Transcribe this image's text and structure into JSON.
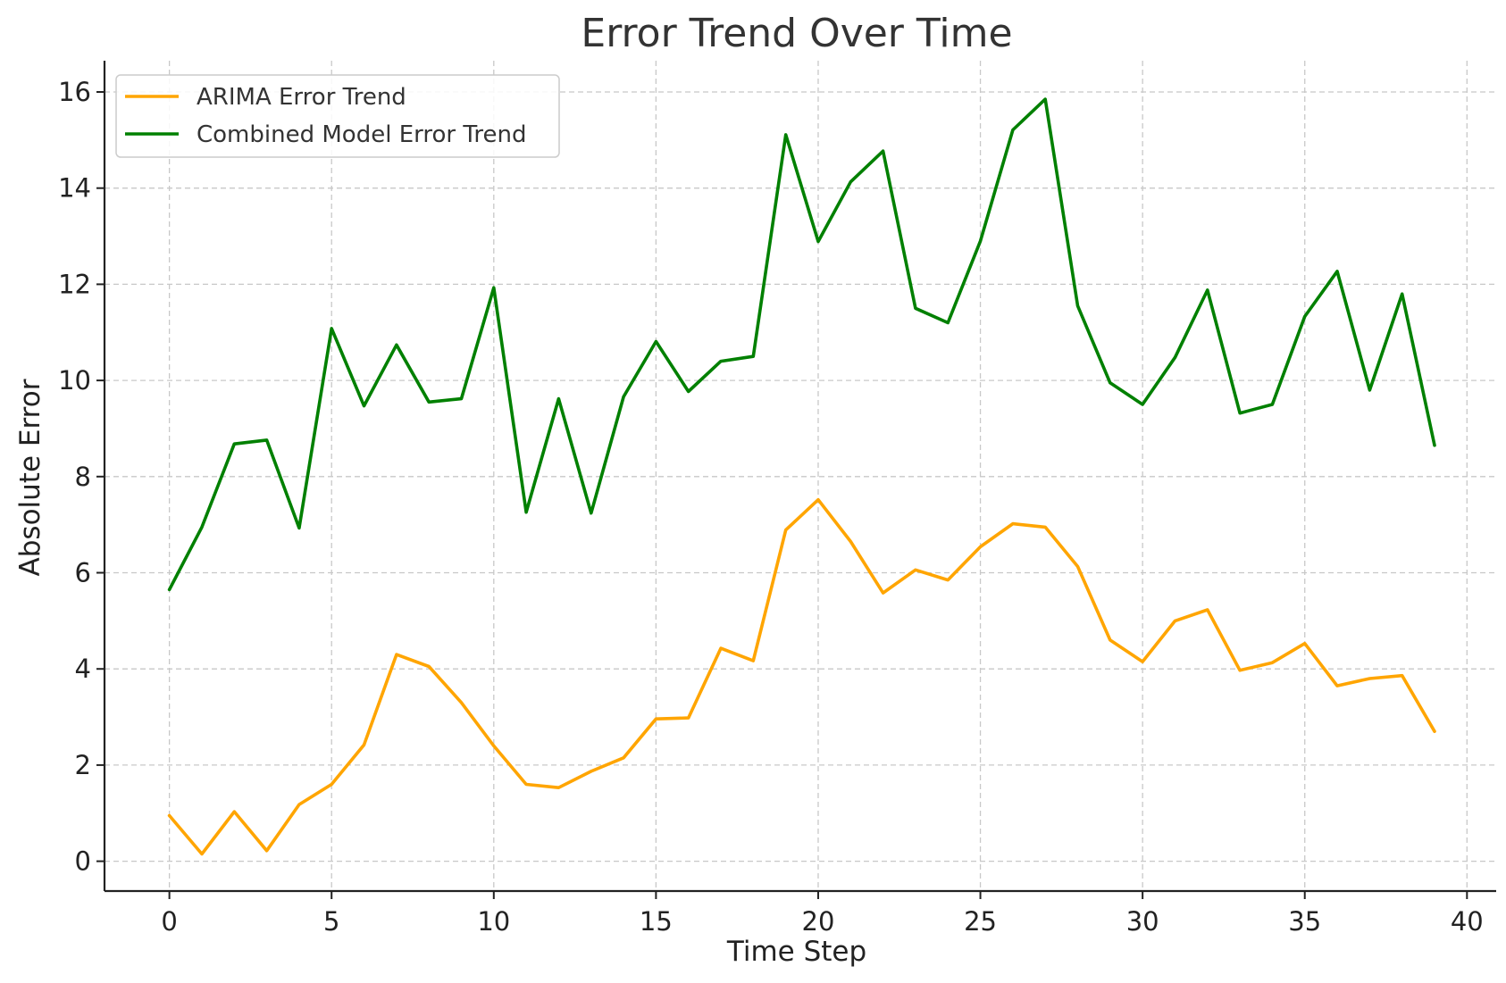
{
  "chart_data": {
    "type": "line",
    "title": "Error Trend Over Time",
    "xlabel": "Time Step",
    "ylabel": "Absolute Error",
    "xlim": [
      -2,
      40.9
    ],
    "ylim": [
      -0.62,
      16.65
    ],
    "x_ticks": [
      0,
      5,
      10,
      15,
      20,
      25,
      30,
      35,
      40
    ],
    "y_ticks": [
      0,
      2,
      4,
      6,
      8,
      10,
      12,
      14,
      16
    ],
    "grid": true,
    "legend_position": "top-left",
    "x": [
      0,
      1,
      2,
      3,
      4,
      5,
      6,
      7,
      8,
      9,
      10,
      11,
      12,
      13,
      14,
      15,
      16,
      17,
      18,
      19,
      20,
      21,
      22,
      23,
      24,
      25,
      26,
      27,
      28,
      29,
      30,
      31,
      32,
      33,
      34,
      35,
      36,
      37,
      38,
      39
    ],
    "series": [
      {
        "name": "ARIMA Error Trend",
        "color": "#ffa500",
        "values": [
          0.95,
          0.15,
          1.03,
          0.22,
          1.18,
          1.6,
          2.42,
          4.3,
          4.05,
          3.3,
          2.4,
          1.6,
          1.53,
          1.87,
          2.15,
          2.96,
          2.98,
          4.43,
          4.17,
          6.89,
          7.52,
          6.65,
          5.58,
          6.06,
          5.85,
          6.54,
          7.02,
          6.95,
          6.13,
          4.6,
          4.15,
          5.0,
          5.23,
          3.97,
          4.13,
          4.53,
          3.65,
          3.8,
          3.86,
          2.7
        ]
      },
      {
        "name": "Combined Model Error Trend",
        "color": "#008000",
        "values": [
          5.65,
          6.95,
          8.68,
          8.76,
          6.93,
          11.08,
          9.47,
          10.74,
          9.55,
          9.62,
          11.93,
          7.26,
          9.62,
          7.24,
          9.66,
          10.81,
          9.77,
          10.4,
          10.5,
          15.11,
          12.89,
          14.13,
          14.77,
          11.5,
          11.2,
          12.9,
          15.21,
          15.85,
          11.55,
          9.95,
          9.5,
          10.48,
          11.88,
          9.32,
          9.5,
          11.33,
          12.27,
          9.8,
          11.8,
          8.65
        ]
      }
    ]
  }
}
